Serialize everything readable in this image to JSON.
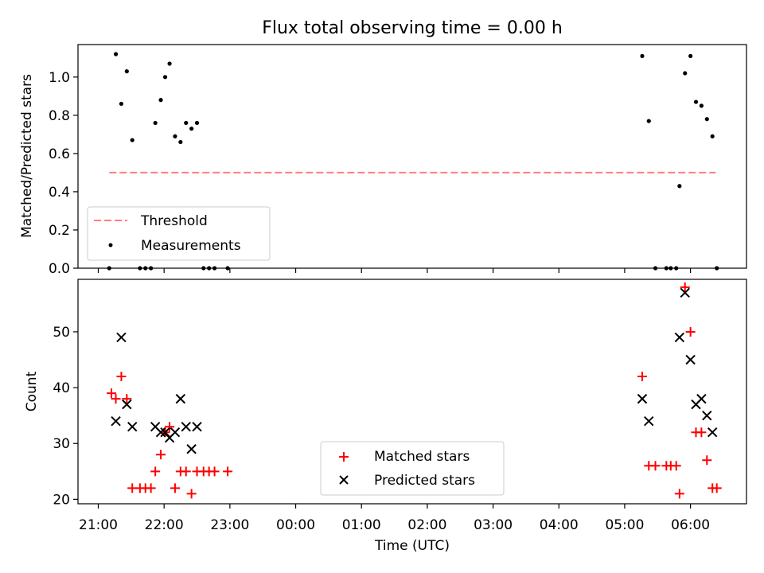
{
  "title": "Flux total observing time = 0.00 h",
  "colors": {
    "threshold": "#ff7f7f",
    "measurements": "#000000",
    "matched": "#ff0000",
    "predicted": "#000000"
  },
  "chart_data": [
    {
      "type": "scatter",
      "ylabel": "Matched/Predicted stars",
      "ylim": [
        0,
        1.17
      ],
      "yticks": [
        "0.0",
        "0.2",
        "0.4",
        "0.6",
        "0.8",
        "1.0"
      ],
      "ytick_values": [
        0,
        0.2,
        0.4,
        0.6,
        0.8,
        1.0
      ],
      "threshold": {
        "label": "Threshold",
        "y": 0.5,
        "x_start": "21:10",
        "x_end": "06:23"
      },
      "legend": [
        "Threshold",
        "Measurements"
      ],
      "legend_position": "lower-left",
      "measurements": [
        [
          "21:10",
          0.0
        ],
        [
          "21:16",
          1.12
        ],
        [
          "21:21",
          0.86
        ],
        [
          "21:26",
          1.03
        ],
        [
          "21:31",
          0.67
        ],
        [
          "21:38",
          0.0
        ],
        [
          "21:43",
          0.0
        ],
        [
          "21:48",
          0.0
        ],
        [
          "21:52",
          0.76
        ],
        [
          "21:57",
          0.88
        ],
        [
          "22:01",
          1.0
        ],
        [
          "22:05",
          1.07
        ],
        [
          "22:10",
          0.69
        ],
        [
          "22:15",
          0.66
        ],
        [
          "22:20",
          0.76
        ],
        [
          "22:25",
          0.73
        ],
        [
          "22:30",
          0.76
        ],
        [
          "22:36",
          0.0
        ],
        [
          "22:41",
          0.0
        ],
        [
          "22:46",
          0.0
        ],
        [
          "22:58",
          0.0
        ],
        [
          "05:16",
          1.11
        ],
        [
          "05:22",
          0.77
        ],
        [
          "05:28",
          0.0
        ],
        [
          "05:38",
          0.0
        ],
        [
          "05:42",
          0.0
        ],
        [
          "05:47",
          0.0
        ],
        [
          "05:50",
          0.43
        ],
        [
          "05:55",
          1.02
        ],
        [
          "06:00",
          1.11
        ],
        [
          "06:05",
          0.87
        ],
        [
          "06:10",
          0.85
        ],
        [
          "06:15",
          0.78
        ],
        [
          "06:20",
          0.69
        ],
        [
          "06:24",
          0.0
        ]
      ]
    },
    {
      "type": "scatter",
      "xlabel": "Time (UTC)",
      "ylabel": "Count",
      "ylim": [
        19.2,
        59.4
      ],
      "yticks": [
        "20",
        "30",
        "40",
        "50"
      ],
      "ytick_values": [
        20,
        30,
        40,
        50
      ],
      "xticks": [
        "21:00",
        "22:00",
        "23:00",
        "00:00",
        "01:00",
        "02:00",
        "03:00",
        "04:00",
        "05:00",
        "06:00"
      ],
      "legend": [
        "Matched stars",
        "Predicted stars"
      ],
      "legend_position": "lower-center",
      "series": [
        {
          "name": "Matched stars",
          "marker": "plus",
          "points": [
            [
              "21:12",
              39
            ],
            [
              "21:16",
              38
            ],
            [
              "21:21",
              42
            ],
            [
              "21:26",
              38
            ],
            [
              "21:31",
              22
            ],
            [
              "21:38",
              22
            ],
            [
              "21:43",
              22
            ],
            [
              "21:48",
              22
            ],
            [
              "21:52",
              25
            ],
            [
              "21:57",
              28
            ],
            [
              "22:01",
              32
            ],
            [
              "22:05",
              33
            ],
            [
              "22:10",
              22
            ],
            [
              "22:15",
              25
            ],
            [
              "22:20",
              25
            ],
            [
              "22:25",
              21
            ],
            [
              "22:30",
              25
            ],
            [
              "22:36",
              25
            ],
            [
              "22:41",
              25
            ],
            [
              "22:46",
              25
            ],
            [
              "22:58",
              25
            ],
            [
              "05:16",
              42
            ],
            [
              "05:22",
              26
            ],
            [
              "05:28",
              26
            ],
            [
              "05:38",
              26
            ],
            [
              "05:42",
              26
            ],
            [
              "05:47",
              26
            ],
            [
              "05:50",
              21
            ],
            [
              "05:55",
              58
            ],
            [
              "06:00",
              50
            ],
            [
              "06:05",
              32
            ],
            [
              "06:10",
              32
            ],
            [
              "06:15",
              27
            ],
            [
              "06:20",
              22
            ],
            [
              "06:24",
              22
            ]
          ]
        },
        {
          "name": "Predicted stars",
          "marker": "x",
          "points": [
            [
              "21:16",
              34
            ],
            [
              "21:21",
              49
            ],
            [
              "21:26",
              37
            ],
            [
              "21:31",
              33
            ],
            [
              "21:52",
              33
            ],
            [
              "21:57",
              32
            ],
            [
              "22:01",
              32
            ],
            [
              "22:05",
              31
            ],
            [
              "22:10",
              32
            ],
            [
              "22:15",
              38
            ],
            [
              "22:20",
              33
            ],
            [
              "22:25",
              29
            ],
            [
              "22:30",
              33
            ],
            [
              "05:16",
              38
            ],
            [
              "05:22",
              34
            ],
            [
              "05:50",
              49
            ],
            [
              "05:55",
              57
            ],
            [
              "06:00",
              45
            ],
            [
              "06:05",
              37
            ],
            [
              "06:10",
              38
            ],
            [
              "06:15",
              35
            ],
            [
              "06:20",
              32
            ]
          ]
        }
      ]
    }
  ]
}
